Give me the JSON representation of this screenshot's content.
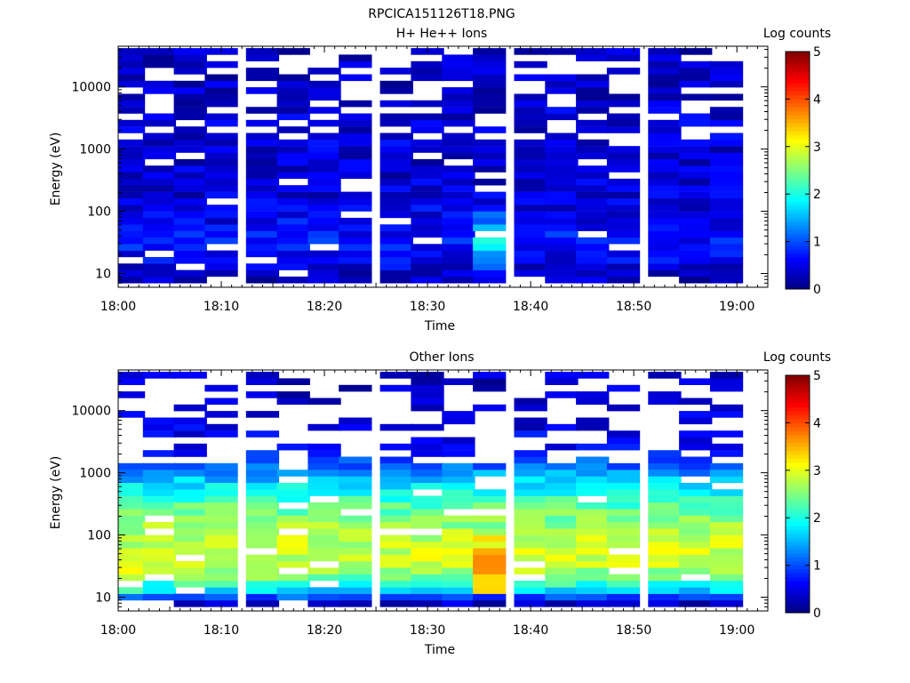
{
  "figure": {
    "title": "RPCICA151126T18.PNG"
  },
  "chart_data": [
    {
      "type": "heatmap",
      "title": "H+ He++ Ions",
      "xlabel": "Time",
      "ylabel": "Energy (eV)",
      "y_scale": "log",
      "xlim": [
        "18:00",
        "19:03"
      ],
      "ylim": [
        6,
        45000
      ],
      "x_ticks": [
        "18:00",
        "18:10",
        "18:20",
        "18:30",
        "18:40",
        "18:50",
        "19:00"
      ],
      "y_ticks": [
        "10",
        "100",
        "1000",
        "10000"
      ],
      "colorbar": {
        "label": "Log counts",
        "range": [
          0,
          5
        ],
        "ticks": [
          "0",
          "1",
          "2",
          "3",
          "4",
          "5"
        ]
      },
      "time_columns": [
        "18:01",
        "18:04",
        "18:07",
        "18:10",
        "18:14",
        "18:17",
        "18:20",
        "18:23",
        "18:27",
        "18:30",
        "18:33",
        "18:36",
        "18:40",
        "18:43",
        "18:46",
        "18:49",
        "18:53",
        "18:56",
        "18:59"
      ],
      "energy_profile": {
        "energy_eV": [
          8,
          12,
          18,
          30,
          50,
          80,
          150,
          300,
          600,
          1200,
          2500,
          5000,
          10000,
          20000,
          40000
        ],
        "log_counts": [
          0.35,
          0.45,
          0.6,
          0.7,
          0.65,
          0.55,
          0.45,
          0.4,
          0.4,
          0.45,
          0.45,
          0.4,
          0.35,
          0.35,
          0.3
        ]
      },
      "features": [
        {
          "time": "18:37",
          "energy_eV": 35,
          "log_counts": 1.9
        }
      ]
    },
    {
      "type": "heatmap",
      "title": "Other Ions",
      "xlabel": "Time",
      "ylabel": "Energy (eV)",
      "y_scale": "log",
      "xlim": [
        "18:00",
        "19:03"
      ],
      "ylim": [
        6,
        45000
      ],
      "x_ticks": [
        "18:00",
        "18:10",
        "18:20",
        "18:30",
        "18:40",
        "18:50",
        "19:00"
      ],
      "y_ticks": [
        "10",
        "100",
        "1000",
        "10000"
      ],
      "colorbar": {
        "label": "Log counts",
        "range": [
          0,
          5
        ],
        "ticks": [
          "0",
          "1",
          "2",
          "3",
          "4",
          "5"
        ]
      },
      "time_columns": [
        "18:01",
        "18:04",
        "18:07",
        "18:10",
        "18:14",
        "18:17",
        "18:20",
        "18:23",
        "18:27",
        "18:30",
        "18:33",
        "18:36",
        "18:40",
        "18:43",
        "18:46",
        "18:49",
        "18:53",
        "18:56",
        "18:59"
      ],
      "energy_profile": {
        "energy_eV": [
          8,
          12,
          18,
          30,
          50,
          80,
          150,
          300,
          600,
          1200,
          2500,
          5000,
          10000,
          20000,
          40000
        ],
        "log_counts": [
          0.3,
          1.5,
          2.3,
          2.8,
          2.9,
          2.8,
          2.6,
          2.3,
          1.8,
          1.2,
          0.6,
          0.5,
          0.45,
          0.4,
          0.35
        ]
      },
      "features": [
        {
          "time": "18:37",
          "energy_eV": 32,
          "log_counts": 3.9
        },
        {
          "time": "18:53",
          "energy_eV": 60,
          "log_counts": 3.2
        },
        {
          "time": "18:01",
          "energy_eV": 30,
          "log_counts": 3.3
        }
      ]
    }
  ]
}
